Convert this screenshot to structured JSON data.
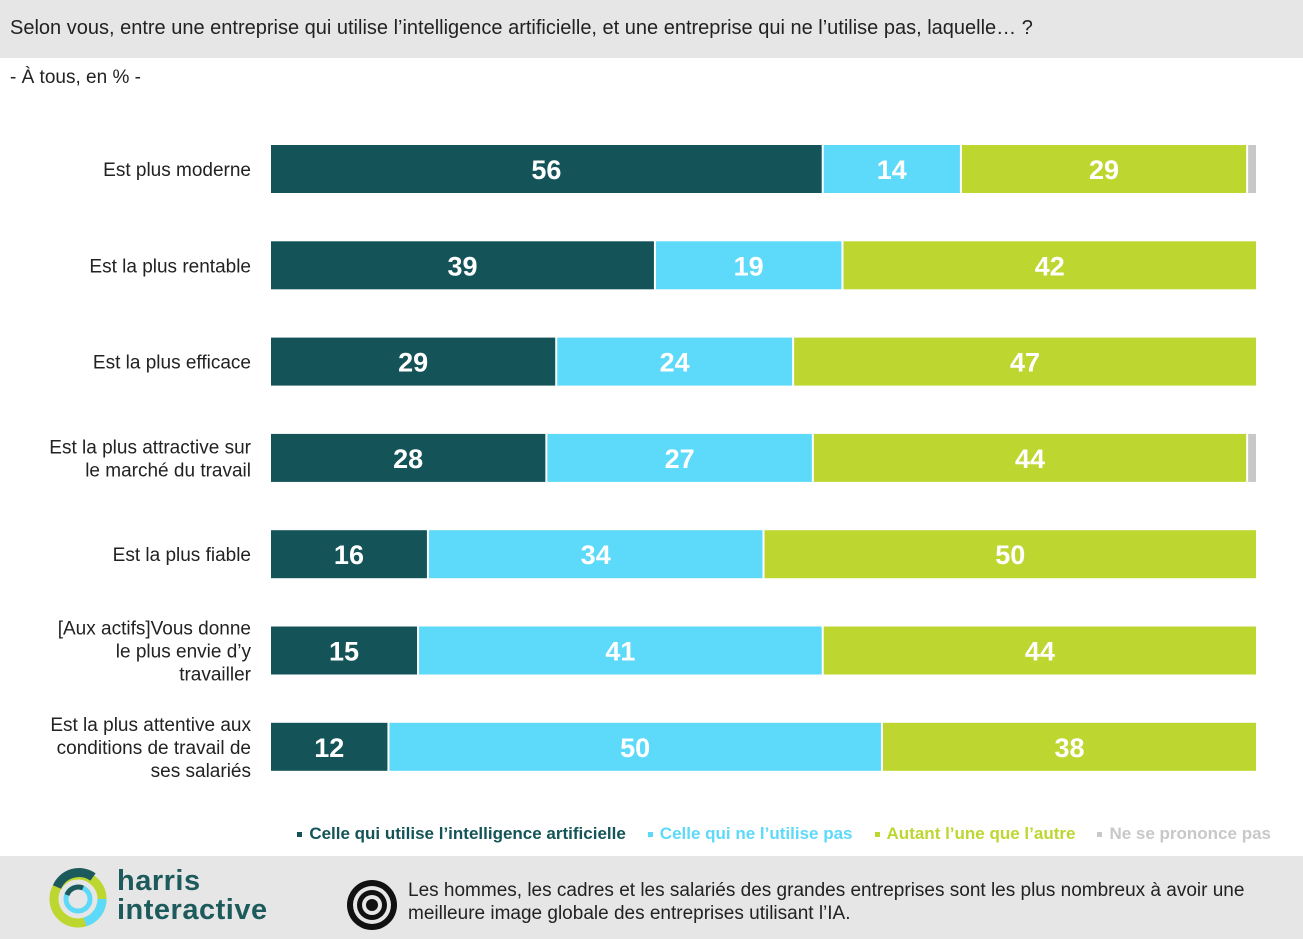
{
  "header": {
    "question": "Selon vous, entre une entreprise qui utilise l’intelligence artificielle, et une entreprise qui ne l’utilise pas, laquelle… ?",
    "base": "- À tous, en % -"
  },
  "chart_data": {
    "type": "bar",
    "orientation": "horizontal",
    "stacked": true,
    "unit": "%",
    "categories": [
      [
        "Est plus moderne"
      ],
      [
        "Est la plus rentable"
      ],
      [
        "Est la plus efficace"
      ],
      [
        "Est la plus attractive sur",
        "le marché du travail"
      ],
      [
        "Est la plus fiable"
      ],
      [
        "[Aux actifs]Vous donne",
        "le plus envie d’y",
        "travailler"
      ],
      [
        "Est la plus attentive aux",
        "conditions de travail de",
        "ses salariés"
      ]
    ],
    "series": [
      {
        "name": "Celle qui utilise l’intelligence artificielle",
        "color": "#145458",
        "values": [
          56,
          39,
          29,
          28,
          16,
          15,
          12
        ]
      },
      {
        "name": "Celle qui ne l’utilise pas",
        "color": "#5dd9f9",
        "values": [
          14,
          19,
          24,
          27,
          34,
          41,
          50
        ]
      },
      {
        "name": "Autant l’une que l’autre",
        "color": "#bed630",
        "values": [
          29,
          42,
          47,
          44,
          50,
          44,
          38
        ]
      },
      {
        "name": "Ne se prononce pas",
        "color": "#c8c8c8",
        "values": [
          1,
          0,
          0,
          1,
          0,
          0,
          0
        ]
      }
    ],
    "xlim": [
      0,
      100
    ],
    "legend_position": "bottom-right"
  },
  "legend": [
    {
      "label": "Celle qui utilise l’intelligence artificielle",
      "color": "#145458"
    },
    {
      "label": "Celle qui ne l’utilise pas",
      "color": "#5dd9f9"
    },
    {
      "label": "Autant l’une que l’autre",
      "color": "#bed630"
    },
    {
      "label": "Ne se prononce pas",
      "color": "#c8c8c8"
    }
  ],
  "footer": {
    "logo_line1": "harris",
    "logo_line2": "interactive",
    "logo_icon": "harris-ring-logo",
    "note_icon": "target-icon",
    "note": "Les hommes, les cadres et les salariés des grandes entreprises sont les plus nombreux à avoir une meilleure image globale des entreprises utilisant l’IA."
  }
}
